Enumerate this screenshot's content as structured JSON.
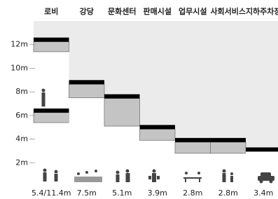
{
  "chart_data": {
    "type": "ceiling",
    "categories": [
      "로비",
      "강당",
      "문화센터",
      "판매시설",
      "업무시설",
      "사회서비스",
      "지하주차장"
    ],
    "floors": [
      {
        "color": "#000000",
        "values": [
          6.6,
          9.0,
          7.8,
          5.2,
          4.1,
          4.1,
          3.3
        ]
      },
      {
        "color": "#000000",
        "values": [
          12.6,
          null,
          null,
          null,
          null,
          null,
          null
        ]
      }
    ],
    "ceilings": [
      {
        "color": "#c4c4c4",
        "values": [
          5.4,
          7.5,
          5.1,
          3.9,
          2.8,
          2.8,
          3.4
        ],
        "value_labels": [
          "5.4/11.4m",
          "7.5m",
          "5.1m",
          "3.9m",
          "2.8m",
          "2.8m",
          "3.4m"
        ]
      },
      {
        "color": "#c4c4c4",
        "values": [
          11.4,
          null,
          null,
          null,
          null,
          null,
          null
        ]
      }
    ],
    "background": "#ebebeb",
    "ylim": [
      0,
      14
    ],
    "yticks": [
      {
        "value": 2,
        "label": "2m"
      },
      {
        "value": 4,
        "label": "4m"
      },
      {
        "value": 6,
        "label": "6m"
      },
      {
        "value": 8,
        "label": "8m"
      },
      {
        "value": 10,
        "label": "10m"
      },
      {
        "value": 12,
        "label": "12m"
      }
    ],
    "grid": true
  }
}
